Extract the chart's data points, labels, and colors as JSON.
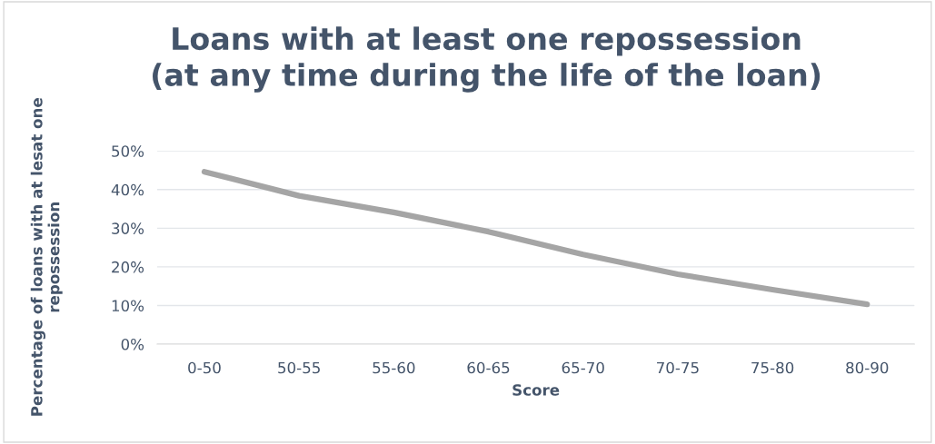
{
  "chart_data": {
    "type": "line",
    "title": "Loans with at least one repossession\n(at any time during the life of the loan)",
    "xlabel": "Score",
    "ylabel": "Percentage of loans with at lesat one\nrepossession",
    "categories": [
      "0-50",
      "50-55",
      "55-60",
      "60-65",
      "65-70",
      "70-75",
      "75-80",
      "80-90"
    ],
    "series": [
      {
        "color": "#a5a5a5",
        "values": [
          44.6,
          38.4,
          34.1,
          29.1,
          23.2,
          18.1,
          14.1,
          10.3
        ]
      }
    ],
    "ylim": [
      0,
      50
    ],
    "yticks": [
      {
        "value": 0,
        "label": "0%"
      },
      {
        "value": 10,
        "label": "10%"
      },
      {
        "value": 20,
        "label": "20%"
      },
      {
        "value": 30,
        "label": "30%"
      },
      {
        "value": 40,
        "label": "40%"
      },
      {
        "value": 50,
        "label": "50%"
      }
    ],
    "grid": "y",
    "marker": "none",
    "line_style": "solid"
  }
}
